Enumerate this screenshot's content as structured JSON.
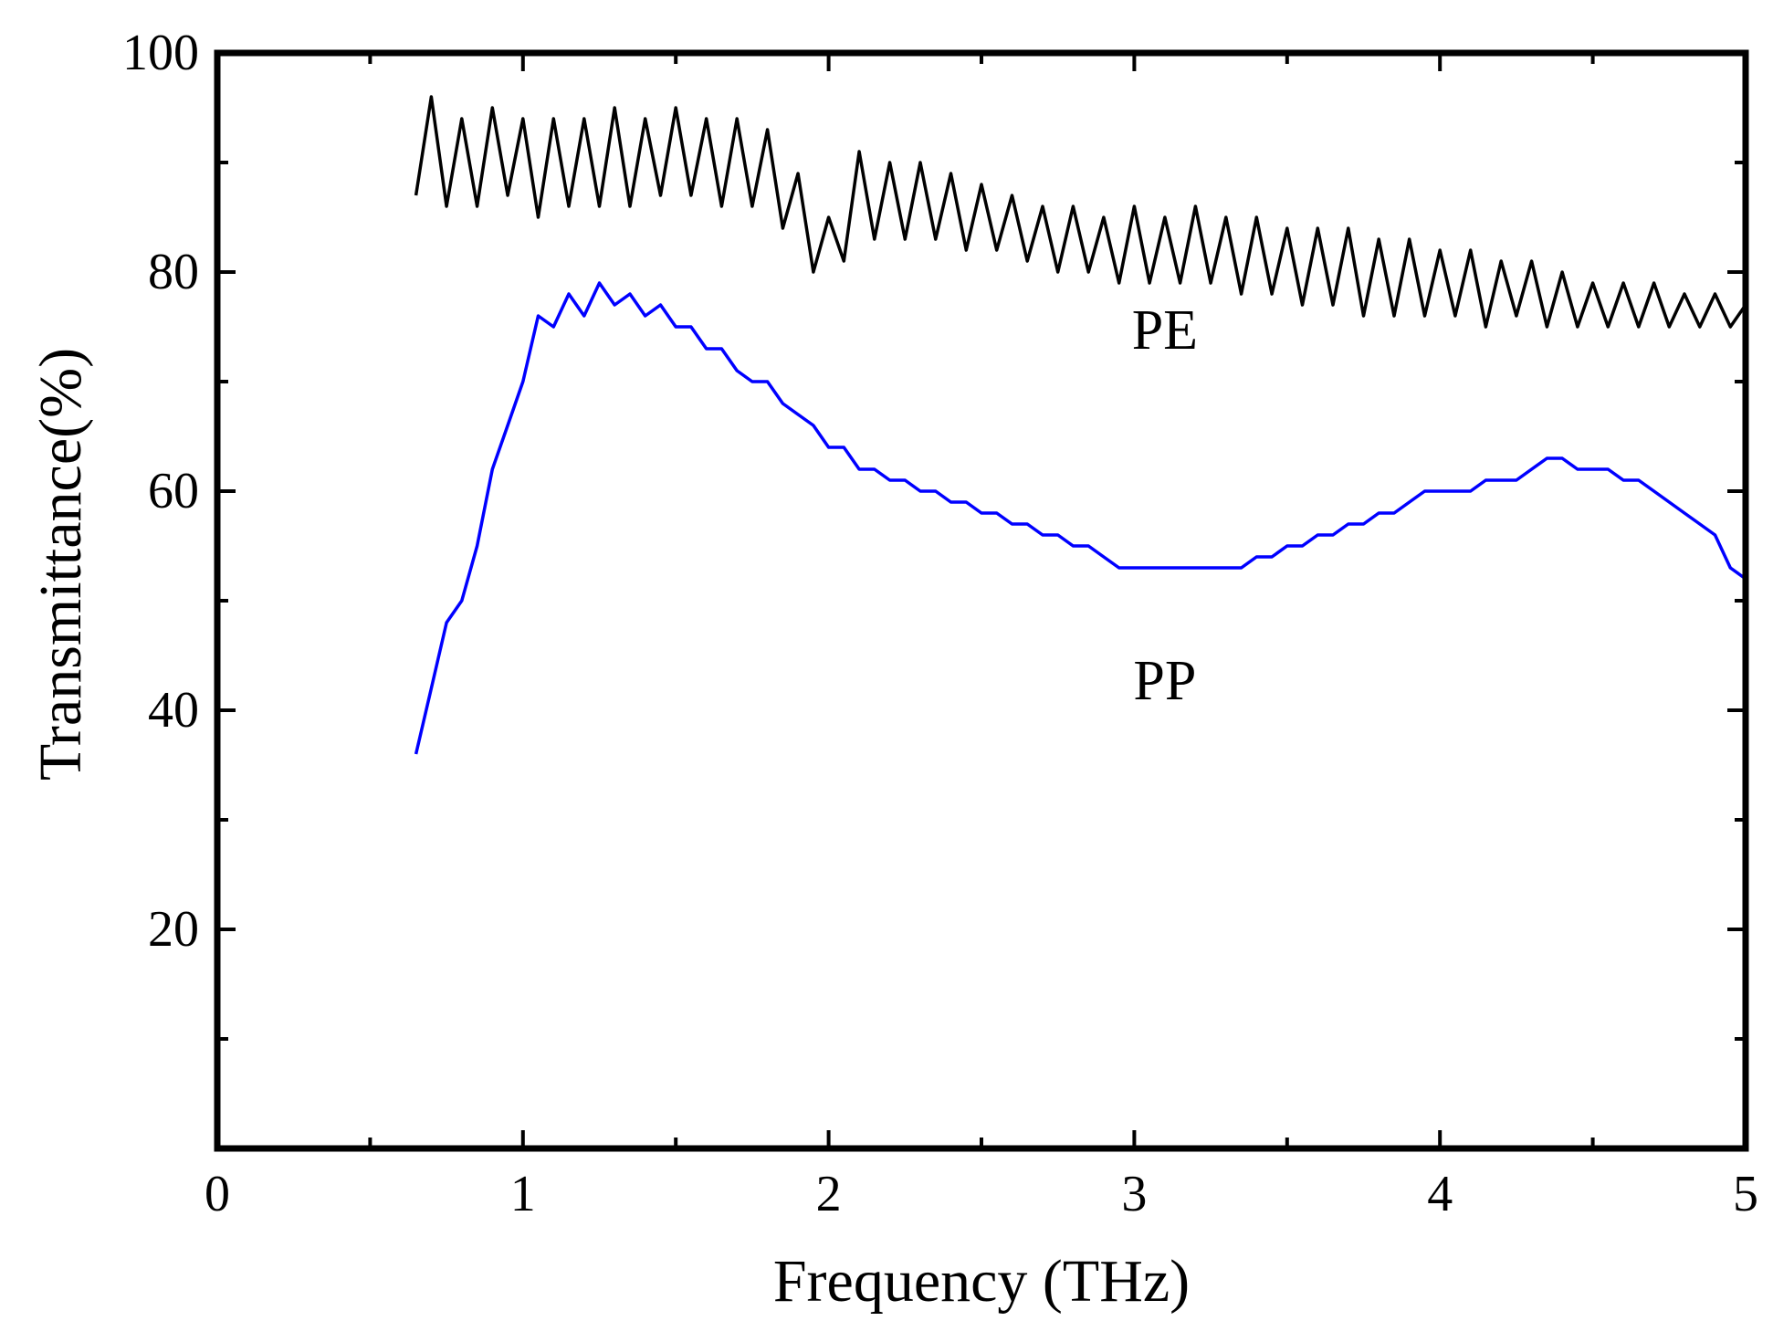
{
  "chart_data": {
    "type": "line",
    "xlabel": "Frequency (THz)",
    "ylabel": "Transmittance(%)",
    "xlim": [
      0,
      5
    ],
    "ylim": [
      0,
      100
    ],
    "x_ticks": [
      "0",
      "1",
      "2",
      "3",
      "4",
      "5"
    ],
    "y_ticks": [
      "20",
      "40",
      "60",
      "80",
      "100"
    ],
    "grid": false,
    "series": [
      {
        "name": "PE",
        "color": "#000000",
        "x": [
          0.65,
          0.7,
          0.75,
          0.8,
          0.85,
          0.9,
          0.95,
          1.0,
          1.05,
          1.1,
          1.15,
          1.2,
          1.25,
          1.3,
          1.35,
          1.4,
          1.45,
          1.5,
          1.55,
          1.6,
          1.65,
          1.7,
          1.75,
          1.8,
          1.85,
          1.9,
          1.95,
          2.0,
          2.05,
          2.1,
          2.15,
          2.2,
          2.25,
          2.3,
          2.35,
          2.4,
          2.45,
          2.5,
          2.55,
          2.6,
          2.65,
          2.7,
          2.75,
          2.8,
          2.85,
          2.9,
          2.95,
          3.0,
          3.05,
          3.1,
          3.15,
          3.2,
          3.25,
          3.3,
          3.35,
          3.4,
          3.45,
          3.5,
          3.55,
          3.6,
          3.65,
          3.7,
          3.75,
          3.8,
          3.85,
          3.9,
          3.95,
          4.0,
          4.05,
          4.1,
          4.15,
          4.2,
          4.25,
          4.3,
          4.35,
          4.4,
          4.45,
          4.5,
          4.55,
          4.6,
          4.65,
          4.7,
          4.75,
          4.8,
          4.85,
          4.9,
          4.95,
          5.0
        ],
        "y": [
          87,
          96,
          86,
          94,
          86,
          95,
          87,
          94,
          85,
          94,
          86,
          94,
          86,
          95,
          86,
          94,
          87,
          95,
          87,
          94,
          86,
          94,
          86,
          93,
          84,
          89,
          80,
          85,
          81,
          91,
          83,
          90,
          83,
          90,
          83,
          89,
          82,
          88,
          82,
          87,
          81,
          86,
          80,
          86,
          80,
          85,
          79,
          86,
          79,
          85,
          79,
          86,
          79,
          85,
          78,
          85,
          78,
          84,
          77,
          84,
          77,
          84,
          76,
          83,
          76,
          83,
          76,
          82,
          76,
          82,
          75,
          81,
          76,
          81,
          75,
          80,
          75,
          79,
          75,
          79,
          75,
          79,
          75,
          78,
          75,
          78,
          75,
          77
        ]
      },
      {
        "name": "PP",
        "color": "#0000ff",
        "x": [
          0.65,
          0.7,
          0.75,
          0.8,
          0.85,
          0.9,
          0.95,
          1.0,
          1.05,
          1.1,
          1.15,
          1.2,
          1.25,
          1.3,
          1.35,
          1.4,
          1.45,
          1.5,
          1.55,
          1.6,
          1.65,
          1.7,
          1.75,
          1.8,
          1.85,
          1.9,
          1.95,
          2.0,
          2.05,
          2.1,
          2.15,
          2.2,
          2.25,
          2.3,
          2.35,
          2.4,
          2.45,
          2.5,
          2.55,
          2.6,
          2.65,
          2.7,
          2.75,
          2.8,
          2.85,
          2.9,
          2.95,
          3.0,
          3.05,
          3.1,
          3.15,
          3.2,
          3.25,
          3.3,
          3.35,
          3.4,
          3.45,
          3.5,
          3.55,
          3.6,
          3.65,
          3.7,
          3.75,
          3.8,
          3.85,
          3.9,
          3.95,
          4.0,
          4.05,
          4.1,
          4.15,
          4.2,
          4.25,
          4.3,
          4.35,
          4.4,
          4.45,
          4.5,
          4.55,
          4.6,
          4.65,
          4.7,
          4.75,
          4.8,
          4.85,
          4.9,
          4.95,
          5.0
        ],
        "y": [
          36,
          42,
          48,
          50,
          55,
          62,
          66,
          70,
          76,
          75,
          78,
          76,
          79,
          77,
          78,
          76,
          77,
          75,
          75,
          73,
          73,
          71,
          70,
          70,
          68,
          67,
          66,
          64,
          64,
          62,
          62,
          61,
          61,
          60,
          60,
          59,
          59,
          58,
          58,
          57,
          57,
          56,
          56,
          55,
          55,
          54,
          53,
          53,
          53,
          53,
          53,
          53,
          53,
          53,
          53,
          54,
          54,
          55,
          55,
          56,
          56,
          57,
          57,
          58,
          58,
          59,
          60,
          60,
          60,
          60,
          61,
          61,
          61,
          62,
          63,
          63,
          62,
          62,
          62,
          61,
          61,
          60,
          59,
          58,
          57,
          56,
          53,
          52
        ]
      }
    ],
    "annotations": [
      {
        "text": "PE",
        "x": 3.1,
        "y": 73
      },
      {
        "text": "PP",
        "x": 3.1,
        "y": 41
      }
    ]
  }
}
